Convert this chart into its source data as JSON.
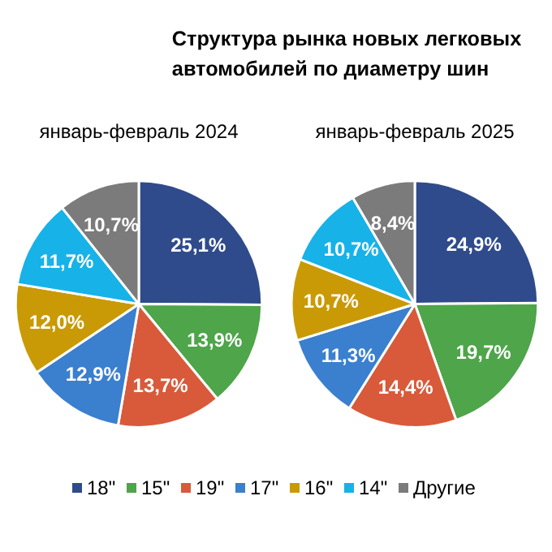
{
  "chart_data": [
    {
      "type": "pie",
      "title": "январь-февраль 2024",
      "annotations": [
        "Структура рынка новых легковых автомобилей по диаметру шин"
      ],
      "legend": "bottom",
      "categories": [
        "18\"",
        "15\"",
        "19\"",
        "17\"",
        "16\"",
        "14\"",
        "Другие"
      ],
      "values": [
        25.1,
        13.9,
        13.7,
        12.9,
        12.0,
        11.7,
        10.7
      ],
      "value_labels": [
        "25,1%",
        "13,9%",
        "13,7%",
        "12,9%",
        "12,0%",
        "11,7%",
        "10,7%"
      ],
      "colors": [
        "#2f4b8c",
        "#4ea54a",
        "#d85a3a",
        "#3b7fcf",
        "#c99a06",
        "#17b2e8",
        "#7b7b7b"
      ]
    },
    {
      "type": "pie",
      "title": "январь-февраль 2025",
      "values": [
        24.9,
        19.7,
        14.4,
        11.3,
        10.7,
        10.7,
        8.4
      ],
      "value_labels": [
        "24,9%",
        "19,7%",
        "14,4%",
        "11,3%",
        "10,7%",
        "10,7%",
        "8,4%"
      ],
      "colors": [
        "#2f4b8c",
        "#4ea54a",
        "#d85a3a",
        "#3b7fcf",
        "#c99a06",
        "#17b2e8",
        "#7b7b7b"
      ]
    }
  ]
}
